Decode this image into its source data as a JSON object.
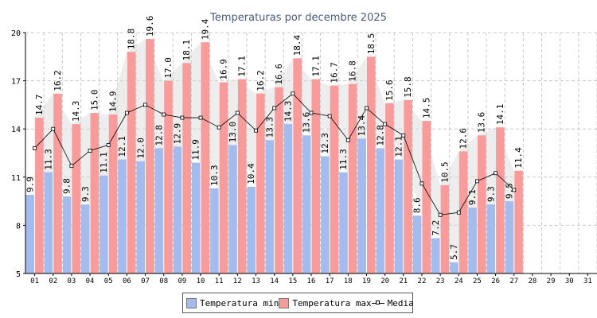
{
  "chart_data": {
    "type": "bar",
    "title": "Temperaturas por decembre 2025",
    "xlabel": "",
    "ylabel": "",
    "ylim": [
      5,
      20
    ],
    "yticks": [
      5,
      8,
      11,
      14,
      17,
      20
    ],
    "categories": [
      "01",
      "02",
      "03",
      "04",
      "05",
      "06",
      "07",
      "08",
      "09",
      "10",
      "11",
      "12",
      "13",
      "14",
      "15",
      "16",
      "17",
      "18",
      "19",
      "20",
      "21",
      "22",
      "23",
      "24",
      "25",
      "26",
      "27",
      "28",
      "29",
      "30",
      "31"
    ],
    "series": [
      {
        "name": "Temperatura min",
        "color": "#a4bced",
        "values": [
          9.9,
          11.3,
          9.8,
          9.3,
          11.1,
          12.1,
          12.0,
          12.8,
          12.9,
          11.9,
          10.3,
          13.0,
          10.4,
          13.3,
          14.3,
          13.6,
          12.3,
          11.3,
          13.4,
          12.8,
          12.1,
          8.6,
          7.2,
          5.7,
          9.1,
          9.3,
          9.5,
          null,
          null,
          null,
          null
        ]
      },
      {
        "name": "Temperatura max",
        "color": "#f89b9b",
        "values": [
          14.7,
          16.2,
          14.3,
          15.0,
          14.9,
          18.8,
          19.6,
          17.0,
          18.1,
          19.4,
          16.9,
          17.1,
          16.2,
          16.6,
          18.4,
          17.1,
          16.7,
          16.8,
          18.5,
          15.6,
          15.8,
          14.5,
          10.5,
          12.6,
          13.6,
          14.1,
          11.4,
          null,
          null,
          null,
          null
        ]
      },
      {
        "name": "Media",
        "color": "#000000",
        "values": [
          12.8,
          14.0,
          11.7,
          12.65,
          13.0,
          15.0,
          15.5,
          14.9,
          14.7,
          14.7,
          14.1,
          15.0,
          13.9,
          15.3,
          16.2,
          15.0,
          14.8,
          13.3,
          15.3,
          14.3,
          13.6,
          10.6,
          8.65,
          8.8,
          10.75,
          11.25,
          10.2,
          null,
          null,
          null,
          null
        ]
      }
    ],
    "legend": [
      "Temperatura min",
      "Temperatura max",
      "Media"
    ],
    "legend_position": "bottom-center",
    "grid": true
  }
}
